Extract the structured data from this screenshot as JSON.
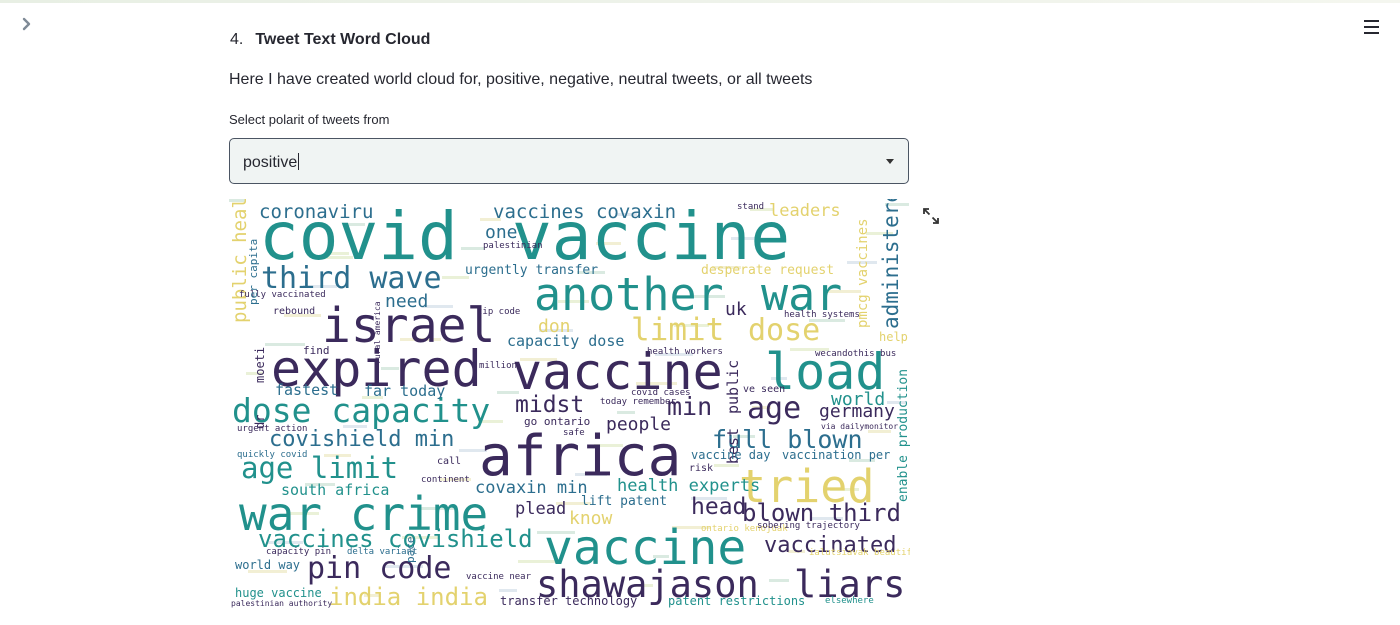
{
  "section": {
    "number": "4.",
    "title": "Tweet Text Word Cloud"
  },
  "description": "Here I have created world cloud for, positive, negative, neutral tweets, or all tweets",
  "polarity_select": {
    "label": "Select polarit of tweets from",
    "value": "positive"
  },
  "icons": {
    "sidebar_toggle": "chevron-right-icon",
    "menu": "hamburger-menu-icon",
    "expand": "fullscreen-expand-icon"
  },
  "colors": {
    "cloud_teal": "#21918c",
    "cloud_dark": "#3b2a5c",
    "cloud_yellow": "#e3d26e",
    "cloud_blue": "#2c6e8e",
    "cloud_green": "#3aa476"
  },
  "word_cloud": {
    "words": [
      {
        "text": "covid",
        "color": "#21918c"
      },
      {
        "text": "vaccine",
        "color": "#21918c"
      },
      {
        "text": "another",
        "color": "#21918c"
      },
      {
        "text": "war",
        "color": "#21918c"
      },
      {
        "text": "israel",
        "color": "#3b2a5c"
      },
      {
        "text": "expired",
        "color": "#3b2a5c"
      },
      {
        "text": "vaccine",
        "color": "#3b2a5c"
      },
      {
        "text": "load",
        "color": "#21918c"
      },
      {
        "text": "africa",
        "color": "#3b2a5c"
      },
      {
        "text": "war crime",
        "color": "#21918c"
      },
      {
        "text": "vaccine",
        "color": "#21918c"
      },
      {
        "text": "shawajason",
        "color": "#3b2a5c"
      },
      {
        "text": "liars",
        "color": "#3b2a5c"
      },
      {
        "text": "tried",
        "color": "#e3d26e"
      },
      {
        "text": "dose capacity",
        "color": "#21918c"
      },
      {
        "text": "third wave",
        "color": "#2c6e8e"
      },
      {
        "text": "limit",
        "color": "#e3d26e"
      },
      {
        "text": "dose",
        "color": "#e3d26e"
      },
      {
        "text": "age limit",
        "color": "#21918c"
      },
      {
        "text": "pin code",
        "color": "#3b2a5c"
      },
      {
        "text": "full blown",
        "color": "#2c6e8e"
      },
      {
        "text": "blown third",
        "color": "#3b2a5c"
      },
      {
        "text": "vaccines covishield",
        "color": "#21918c"
      },
      {
        "text": "vaccinated",
        "color": "#3b2a5c"
      },
      {
        "text": "india india",
        "color": "#e3d26e"
      },
      {
        "text": "min",
        "color": "#3b2a5c"
      },
      {
        "text": "age",
        "color": "#3b2a5c"
      },
      {
        "text": "midst",
        "color": "#3b2a5c"
      },
      {
        "text": "head",
        "color": "#3b2a5c"
      },
      {
        "text": "covishield min",
        "color": "#2c6e8e"
      },
      {
        "text": "coronaviru",
        "color": "#2c6e8e"
      },
      {
        "text": "vaccines covaxin",
        "color": "#2c6e8e"
      },
      {
        "text": "one",
        "color": "#2c6e8e"
      },
      {
        "text": "leaders",
        "color": "#e3d26e"
      },
      {
        "text": "administered",
        "color": "#2c6e8e"
      },
      {
        "text": "public health",
        "color": "#e3d26e"
      },
      {
        "text": "need",
        "color": "#2c6e8e"
      },
      {
        "text": "uk",
        "color": "#3b2a5c"
      },
      {
        "text": "don",
        "color": "#e3d26e"
      },
      {
        "text": "world",
        "color": "#21918c"
      },
      {
        "text": "germany",
        "color": "#3b2a5c"
      },
      {
        "text": "people",
        "color": "#3b2a5c"
      },
      {
        "text": "covaxin min",
        "color": "#2c6e8e"
      },
      {
        "text": "health experts",
        "color": "#21918c"
      },
      {
        "text": "know",
        "color": "#e3d26e"
      },
      {
        "text": "plead",
        "color": "#3b2a5c"
      },
      {
        "text": "south africa",
        "color": "#21918c"
      },
      {
        "text": "capacity dose",
        "color": "#2c6e8e"
      },
      {
        "text": "fastest",
        "color": "#2c6e8e"
      },
      {
        "text": "far today",
        "color": "#2c6e8e"
      },
      {
        "text": "desperate request",
        "color": "#e3d26e"
      },
      {
        "text": "urgently transfer",
        "color": "#2c6e8e"
      },
      {
        "text": "pmcg vaccines",
        "color": "#e3d26e"
      },
      {
        "text": "help",
        "color": "#e3d26e"
      },
      {
        "text": "best",
        "color": "#3b2a5c"
      },
      {
        "text": "public",
        "color": "#3b2a5c"
      },
      {
        "text": "enable production",
        "color": "#21918c"
      },
      {
        "text": "vaccine day",
        "color": "#2c6e8e"
      },
      {
        "text": "vaccination per",
        "color": "#2c6e8e"
      },
      {
        "text": "lift patent",
        "color": "#2c6e8e"
      },
      {
        "text": "transfer technology",
        "color": "#3b2a5c"
      },
      {
        "text": "patent restrictions",
        "color": "#21918c"
      },
      {
        "text": "huge vaccine",
        "color": "#21918c"
      },
      {
        "text": "world way",
        "color": "#2c6e8e"
      },
      {
        "text": "fully vaccinated",
        "color": "#3b2a5c"
      },
      {
        "text": "rebound",
        "color": "#3b2a5c"
      },
      {
        "text": "moeti",
        "color": "#3b2a5c"
      },
      {
        "text": "dr",
        "color": "#3b2a5c"
      },
      {
        "text": "per capita",
        "color": "#2c6e8e"
      },
      {
        "text": "find",
        "color": "#3b2a5c"
      },
      {
        "text": "zip code",
        "color": "#3b2a5c"
      },
      {
        "text": "go ontario",
        "color": "#3b2a5c"
      },
      {
        "text": "call",
        "color": "#3b2a5c"
      },
      {
        "text": "risk",
        "color": "#3b2a5c"
      },
      {
        "text": "covid cases",
        "color": "#3b2a5c"
      },
      {
        "text": "urgent action",
        "color": "#3b2a5c"
      },
      {
        "text": "quickly covid",
        "color": "#2c6e8e"
      },
      {
        "text": "capacity pin",
        "color": "#3b2a5c"
      },
      {
        "text": "delta variant",
        "color": "#2c6e8e"
      },
      {
        "text": "ontario kenojuak",
        "color": "#e3d26e"
      },
      {
        "text": "sobering trajectory",
        "color": "#3b2a5c"
      },
      {
        "text": "ialutsiavak beautiful",
        "color": "#e3d26e"
      },
      {
        "text": "pace",
        "color": "#2c6e8e"
      },
      {
        "text": "health systems",
        "color": "#3b2a5c"
      },
      {
        "text": "safe",
        "color": "#3b2a5c"
      },
      {
        "text": "stand",
        "color": "#3b2a5c"
      },
      {
        "text": "palestinian",
        "color": "#3b2a5c"
      },
      {
        "text": "palestinian authority",
        "color": "#3b2a5c"
      },
      {
        "text": "elsewhere",
        "color": "#21918c"
      },
      {
        "text": "health workers",
        "color": "#3b2a5c"
      },
      {
        "text": "million",
        "color": "#3b2a5c"
      },
      {
        "text": "continent",
        "color": "#3b2a5c"
      },
      {
        "text": "wecandothis bus",
        "color": "#3b2a5c"
      },
      {
        "text": "today remember",
        "color": "#3b2a5c"
      },
      {
        "text": "vaccine near",
        "color": "#3b2a5c"
      },
      {
        "text": "ve seen",
        "color": "#3b2a5c"
      },
      {
        "text": "rural america",
        "color": "#3b2a5c"
      },
      {
        "text": "via dailymonitor",
        "color": "#3b2a5c"
      }
    ]
  }
}
